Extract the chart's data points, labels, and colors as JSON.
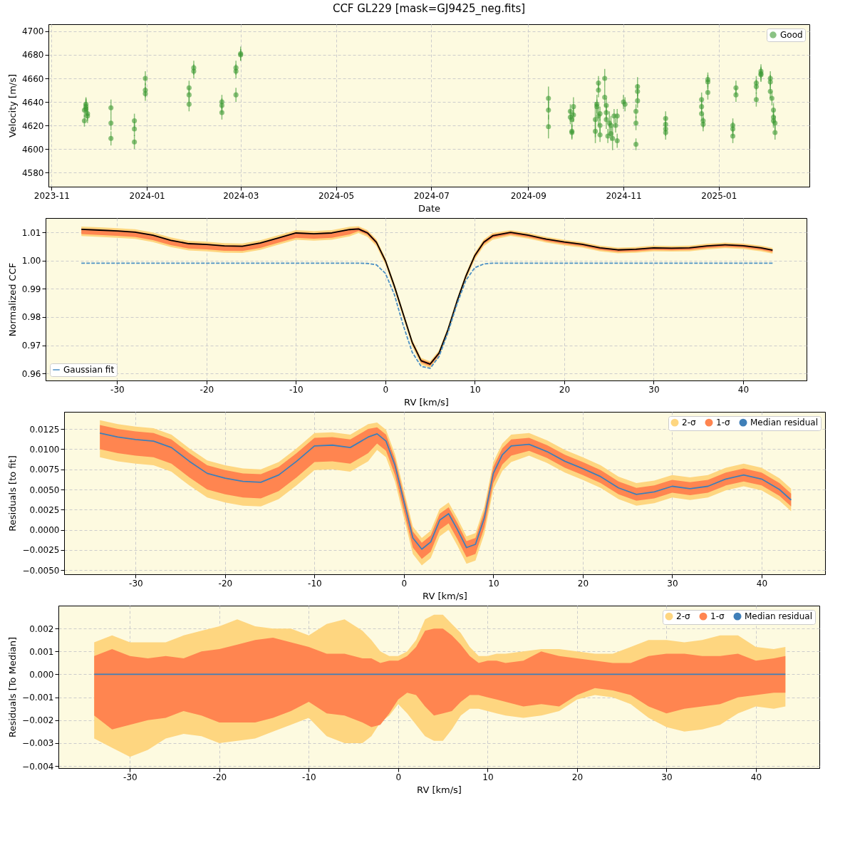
{
  "chart_data": [
    {
      "type": "scatter",
      "title": "CCF GL229 [mask=GJ9425_neg.fits]",
      "xlabel": "Date",
      "ylabel": "Velocity [m/s]",
      "xlim": [
        "2023-10-30",
        "2025-02-28"
      ],
      "xticks": [
        "2023-11",
        "2024-01",
        "2024-03",
        "2024-05",
        "2024-07",
        "2024-09",
        "2024-11",
        "2025-01"
      ],
      "ylim": [
        4568,
        4706
      ],
      "yticks": [
        4580,
        4600,
        4620,
        4640,
        4660,
        4680,
        4700
      ],
      "grid": true,
      "legend": "top right",
      "marker": "circle",
      "series": [
        {
          "name": "Good",
          "color": "#3c9a32",
          "x": [
            "2023-11-22",
            "2023-11-22",
            "2023-11-23",
            "2023-11-23",
            "2023-11-24",
            "2023-11-24",
            "2023-11-23",
            "2023-12-09",
            "2023-12-09",
            "2023-12-09",
            "2023-12-24",
            "2023-12-24",
            "2023-12-24",
            "2023-12-31",
            "2023-12-31",
            "2023-12-31",
            "2024-01-28",
            "2024-01-28",
            "2024-01-28",
            "2024-01-31",
            "2024-01-31",
            "2024-02-18",
            "2024-02-18",
            "2024-02-18",
            "2024-02-27",
            "2024-02-27",
            "2024-02-27",
            "2024-03-01",
            "2024-03-01",
            "2024-09-14",
            "2024-09-14",
            "2024-09-14",
            "2024-09-28",
            "2024-09-28",
            "2024-09-29",
            "2024-09-29",
            "2024-09-29",
            "2024-09-30",
            "2024-09-30",
            "2024-10-14",
            "2024-10-14",
            "2024-10-15",
            "2024-10-15",
            "2024-10-16",
            "2024-10-16",
            "2024-10-16",
            "2024-10-17",
            "2024-10-17",
            "2024-10-17",
            "2024-10-20",
            "2024-10-20",
            "2024-10-21",
            "2024-10-21",
            "2024-10-21",
            "2024-10-22",
            "2024-10-23",
            "2024-10-24",
            "2024-10-24",
            "2024-10-25",
            "2024-10-26",
            "2024-10-27",
            "2024-10-28",
            "2024-10-28",
            "2024-11-01",
            "2024-11-02",
            "2024-11-09",
            "2024-11-09",
            "2024-11-09",
            "2024-11-10",
            "2024-11-10",
            "2024-11-10",
            "2024-11-28",
            "2024-11-28",
            "2024-11-28",
            "2024-11-28",
            "2024-12-21",
            "2024-12-21",
            "2024-12-21",
            "2024-12-22",
            "2024-12-22",
            "2024-12-25",
            "2024-12-25",
            "2024-12-25",
            "2025-01-10",
            "2025-01-10",
            "2025-01-10",
            "2025-01-12",
            "2025-01-12",
            "2025-01-25",
            "2025-01-25",
            "2025-01-25",
            "2025-01-28",
            "2025-01-28",
            "2025-01-28",
            "2025-02-03",
            "2025-02-03",
            "2025-02-03",
            "2025-02-04",
            "2025-02-05",
            "2025-02-05",
            "2025-02-05",
            "2025-02-06",
            "2025-02-06"
          ],
          "values": [
            4624,
            4633,
            4636,
            4638,
            4630,
            4628,
            4634,
            4635,
            4622,
            4609,
            4624,
            4617,
            4606,
            4660,
            4650,
            4647,
            4652,
            4646,
            4638,
            4669,
            4666,
            4640,
            4637,
            4631,
            4669,
            4666,
            4646,
            4681,
            4680,
            4643,
            4633,
            4619,
            4632,
            4627,
            4625,
            4615,
            4614,
            4636,
            4629,
            4615,
            4625,
            4638,
            4636,
            4628,
            4656,
            4650,
            4630,
            4620,
            4612,
            4660,
            4644,
            4637,
            4631,
            4625,
            4611,
            4622,
            4620,
            4613,
            4609,
            4628,
            4620,
            4628,
            4607,
            4640,
            4638,
            4632,
            4622,
            4604,
            4653,
            4649,
            4641,
            4626,
            4621,
            4617,
            4614,
            4642,
            4636,
            4630,
            4624,
            4621,
            4659,
            4657,
            4648,
            4620,
            4617,
            4611,
            4652,
            4646,
            4656,
            4653,
            4642,
            4666,
            4664,
            4663,
            4660,
            4657,
            4649,
            4643,
            4633,
            4627,
            4624,
            4622,
            4614
          ],
          "errors": [
            5,
            6,
            7,
            6,
            6,
            6,
            8,
            7,
            6,
            6,
            6,
            6,
            6,
            6,
            6,
            6,
            6,
            6,
            6,
            6,
            6,
            6,
            6,
            6,
            6,
            6,
            6,
            6,
            5,
            10,
            8,
            10,
            6,
            6,
            6,
            6,
            6,
            8,
            6,
            10,
            15,
            8,
            6,
            8,
            6,
            6,
            6,
            6,
            6,
            8,
            8,
            6,
            6,
            8,
            6,
            10,
            8,
            6,
            10,
            6,
            6,
            6,
            6,
            6,
            6,
            6,
            6,
            5,
            8,
            6,
            6,
            6,
            6,
            6,
            6,
            6,
            6,
            6,
            6,
            6,
            6,
            6,
            6,
            6,
            6,
            6,
            6,
            6,
            6,
            6,
            6,
            6,
            6,
            6,
            6,
            6,
            6,
            6,
            6,
            6,
            6,
            6,
            6
          ]
        }
      ]
    },
    {
      "type": "line",
      "xlabel": "RV [km/s]",
      "ylabel": "Normalized CCF",
      "xlim": [
        -38,
        47.1
      ],
      "xticks": [
        -30,
        -20,
        -10,
        0,
        10,
        20,
        30,
        40
      ],
      "ylim": [
        0.9575,
        1.0151
      ],
      "yticks": [
        0.96,
        0.97,
        0.98,
        0.99,
        {
          "value": 1,
          "label": "1.00"
        },
        1.01
      ],
      "grid": true,
      "legend": "bottom left",
      "x": [
        -34,
        -32,
        -30,
        -28,
        -26,
        -24,
        -22,
        -20,
        -18,
        -16,
        -14,
        -12,
        -10,
        -8,
        -6,
        -4,
        -3,
        -2,
        -1,
        0,
        1,
        2,
        3,
        4,
        5,
        6,
        7,
        8,
        9,
        10,
        11,
        12,
        14,
        16,
        18,
        20,
        22,
        24,
        26,
        28,
        30,
        32,
        34,
        36,
        38,
        40,
        42,
        43.3
      ],
      "series": [
        {
          "type": "line",
          "color": "#fed680",
          "values": [
            null,
            null,
            null,
            null,
            null,
            null,
            null,
            null,
            null,
            null,
            null,
            null,
            null,
            null,
            null,
            null,
            null,
            null,
            null,
            null,
            null,
            null,
            null,
            null,
            null,
            null,
            null,
            null,
            null,
            null,
            null,
            null,
            null,
            null,
            null,
            null,
            null,
            null,
            null,
            null,
            null,
            null,
            null,
            null,
            null,
            null,
            null,
            null
          ],
          "lower": [
            1.0087,
            1.0084,
            1.0081,
            1.0077,
            1.0066,
            1.0048,
            1.0036,
            1.0033,
            1.0028,
            1.0027,
            1.0038,
            1.0056,
            1.0074,
            1.0071,
            1.0074,
            1.0086,
            1.0098,
            1.0084,
            1.0051,
            0.9986,
            0.9896,
            0.9796,
            0.9696,
            0.9631,
            0.9619,
            0.9658,
            0.9741,
            0.9841,
            0.9931,
            1.0004,
            1.0051,
            1.0074,
            1.0088,
            1.0078,
            1.0064,
            1.0054,
            1.0046,
            1.0033,
            1.0026,
            1.0028,
            1.0033,
            1.0032,
            1.0033,
            1.004,
            1.0044,
            1.0041,
            1.0033,
            1.0025
          ],
          "upper": [
            1.0121,
            1.0118,
            1.0115,
            1.0111,
            1.01,
            1.0082,
            1.007,
            1.0067,
            1.0062,
            1.0061,
            1.0072,
            1.009,
            1.0108,
            1.0105,
            1.0108,
            1.012,
            1.0122,
            1.0108,
            1.0075,
            1.001,
            0.992,
            0.982,
            0.972,
            0.9655,
            0.9643,
            0.9682,
            0.9765,
            0.9865,
            0.9955,
            1.0028,
            1.0075,
            1.0098,
            1.0108,
            1.0098,
            1.0084,
            1.0074,
            1.0066,
            1.0053,
            1.0046,
            1.0048,
            1.0053,
            1.0052,
            1.0053,
            1.006,
            1.0064,
            1.0061,
            1.0053,
            1.0045
          ]
        },
        {
          "type": "line",
          "color": "#ff8550",
          "values": [
            null,
            null,
            null,
            null,
            null,
            null,
            null,
            null,
            null,
            null,
            null,
            null,
            null,
            null,
            null,
            null,
            null,
            null,
            null,
            null,
            null,
            null,
            null,
            null,
            null,
            null,
            null,
            null,
            null,
            null,
            null,
            null,
            null,
            null,
            null,
            null,
            null,
            null,
            null,
            null,
            null,
            null,
            null,
            null,
            null,
            null,
            null,
            null
          ],
          "lower": [
            1.0094,
            1.0091,
            1.0088,
            1.0084,
            1.0073,
            1.0055,
            1.0043,
            1.004,
            1.0035,
            1.0034,
            1.0045,
            1.0063,
            1.0081,
            1.0078,
            1.0081,
            1.0093,
            1.0105,
            1.0091,
            1.0058,
            0.9993,
            0.9903,
            0.9803,
            0.9703,
            0.9638,
            0.9626,
            0.9665,
            0.9748,
            0.9848,
            0.9938,
            1.0011,
            1.0058,
            1.0081,
            1.0093,
            1.0083,
            1.0069,
            1.0059,
            1.0051,
            1.0038,
            1.0031,
            1.0033,
            1.0038,
            1.0037,
            1.0038,
            1.0045,
            1.0049,
            1.0046,
            1.0038,
            1.003
          ],
          "upper": [
            1.0114,
            1.0111,
            1.0108,
            1.0104,
            1.0093,
            1.0075,
            1.0063,
            1.006,
            1.0055,
            1.0054,
            1.0065,
            1.0083,
            1.0101,
            1.0098,
            1.0101,
            1.0113,
            1.0117,
            1.0103,
            1.007,
            1.0005,
            0.9915,
            0.9815,
            0.9715,
            0.965,
            0.9638,
            0.9677,
            0.976,
            0.986,
            0.995,
            1.0023,
            1.007,
            1.0093,
            1.0103,
            1.0093,
            1.0079,
            1.0069,
            1.0061,
            1.0048,
            1.0041,
            1.0043,
            1.0048,
            1.0047,
            1.0048,
            1.0055,
            1.0059,
            1.0056,
            1.0048,
            1.004
          ]
        },
        {
          "type": "line",
          "color": "#000000",
          "values": [
            1.0111,
            1.0108,
            1.0105,
            1.0101,
            1.009,
            1.0072,
            1.006,
            1.0057,
            1.0052,
            1.0051,
            1.0062,
            1.008,
            1.0098,
            1.0095,
            1.0098,
            1.011,
            1.0112,
            1.0098,
            1.0065,
            1.0,
            0.991,
            0.981,
            0.971,
            0.9645,
            0.9633,
            0.9672,
            0.9755,
            0.9855,
            0.9945,
            1.0018,
            1.0065,
            1.0088,
            1.01,
            1.009,
            1.0076,
            1.0066,
            1.0058,
            1.0045,
            1.0038,
            1.004,
            1.0045,
            1.0044,
            1.0045,
            1.0052,
            1.0056,
            1.0053,
            1.0045,
            1.0037
          ]
        },
        {
          "name": "Gaussian fit",
          "type": "line",
          "line_style": "dashed",
          "color": "#4a8fc4",
          "values": [
            0.9991,
            0.9991,
            0.9991,
            0.9991,
            0.9991,
            0.9991,
            0.9991,
            0.9991,
            0.9991,
            0.9991,
            0.9991,
            0.9991,
            0.9991,
            0.9991,
            0.9991,
            0.9991,
            0.9991,
            0.999,
            0.9985,
            0.9955,
            0.988,
            0.977,
            0.9675,
            0.9625,
            0.9618,
            0.966,
            0.9745,
            0.9845,
            0.993,
            0.9975,
            0.9988,
            0.9991,
            0.9991,
            0.9991,
            0.9991,
            0.9991,
            0.9991,
            0.9991,
            0.9991,
            0.9991,
            0.9991,
            0.9991,
            0.9991,
            0.9991,
            0.9991,
            0.9991,
            0.9991,
            0.9991
          ]
        }
      ]
    },
    {
      "type": "line",
      "xlabel": "RV [km/s]",
      "ylabel": "Residuals [to fit]",
      "xlim": [
        -38,
        47.1
      ],
      "xticks": [
        -30,
        -20,
        -10,
        0,
        10,
        20,
        30,
        40
      ],
      "ylim": [
        -0.00551,
        0.01463
      ],
      "yticks": [
        {
          "value": -0.005,
          "label": "−0.0050"
        },
        {
          "value": -0.0025,
          "label": "−0.0025"
        },
        {
          "value": 0,
          "label": "0.0000"
        },
        {
          "value": 0.0025,
          "label": "0.0025"
        },
        {
          "value": 0.005,
          "label": "0.0050"
        },
        {
          "value": 0.0075,
          "label": "0.0075"
        },
        {
          "value": 0.01,
          "label": "0.0100"
        },
        {
          "value": 0.0125,
          "label": "0.0125"
        }
      ],
      "grid": true,
      "legend": "top right",
      "x": [
        -34,
        -32,
        -30,
        -28,
        -26,
        -24,
        -22,
        -20,
        -18,
        -16,
        -14,
        -12,
        -10,
        -8,
        -6,
        -4,
        -3,
        -2,
        -1,
        0,
        1,
        2,
        3,
        4,
        5,
        6,
        7,
        8,
        9,
        10,
        11,
        12,
        14,
        16,
        18,
        20,
        22,
        24,
        26,
        28,
        30,
        32,
        34,
        36,
        38,
        40,
        42,
        43.3
      ],
      "series": [
        {
          "name": "2-σ",
          "type": "line",
          "color": "#fed680",
          "values": [
            null,
            null,
            null,
            null,
            null,
            null,
            null,
            null,
            null,
            null,
            null,
            null,
            null,
            null,
            null,
            null,
            null,
            null,
            null,
            null,
            null,
            null,
            null,
            null,
            null,
            null,
            null,
            null,
            null,
            null,
            null,
            null,
            null,
            null,
            null,
            null,
            null,
            null,
            null,
            null,
            null,
            null,
            null,
            null,
            null,
            null,
            null,
            null
          ],
          "lower": [
            0.009,
            0.0085,
            0.0082,
            0.008,
            0.0072,
            0.0055,
            0.004,
            0.0034,
            0.003,
            0.0029,
            0.0038,
            0.0055,
            0.0074,
            0.0075,
            0.0072,
            0.0085,
            0.0099,
            0.009,
            0.006,
            0.0015,
            -0.003,
            -0.0044,
            -0.0035,
            -0.0008,
            0.0,
            -0.002,
            -0.0042,
            -0.0038,
            -0.0005,
            0.005,
            0.0073,
            0.0084,
            0.0092,
            0.0083,
            0.0071,
            0.0062,
            0.0052,
            0.0038,
            0.003,
            0.0033,
            0.004,
            0.0037,
            0.004,
            0.0049,
            0.0054,
            0.0049,
            0.0036,
            0.0023
          ],
          "upper": [
            0.0136,
            0.0131,
            0.0128,
            0.0126,
            0.0118,
            0.0101,
            0.0086,
            0.008,
            0.0076,
            0.0075,
            0.0084,
            0.0101,
            0.012,
            0.0121,
            0.0118,
            0.0131,
            0.0133,
            0.0124,
            0.0094,
            0.0049,
            0.0004,
            -0.001,
            -0.0001,
            0.0026,
            0.0034,
            0.0014,
            -0.0008,
            -0.0004,
            0.0029,
            0.0084,
            0.0107,
            0.0118,
            0.012,
            0.0111,
            0.0099,
            0.009,
            0.008,
            0.0066,
            0.0058,
            0.0061,
            0.0068,
            0.0065,
            0.0068,
            0.0077,
            0.0082,
            0.0077,
            0.0064,
            0.0051
          ]
        },
        {
          "name": "1-σ",
          "type": "line",
          "color": "#ff8550",
          "values": [
            null,
            null,
            null,
            null,
            null,
            null,
            null,
            null,
            null,
            null,
            null,
            null,
            null,
            null,
            null,
            null,
            null,
            null,
            null,
            null,
            null,
            null,
            null,
            null,
            null,
            null,
            null,
            null,
            null,
            null,
            null,
            null,
            null,
            null,
            null,
            null,
            null,
            null,
            null,
            null,
            null,
            null,
            null,
            null,
            null,
            null,
            null,
            null
          ],
          "lower": [
            0.01,
            0.0095,
            0.0092,
            0.009,
            0.0082,
            0.0065,
            0.005,
            0.0044,
            0.004,
            0.0039,
            0.0048,
            0.0065,
            0.0084,
            0.0085,
            0.0082,
            0.0095,
            0.0107,
            0.0098,
            0.0068,
            0.0023,
            -0.0022,
            -0.0036,
            -0.0027,
            0.0,
            0.0008,
            -0.0012,
            -0.0034,
            -0.003,
            0.0003,
            0.0058,
            0.0081,
            0.0092,
            0.0098,
            0.0089,
            0.0077,
            0.0068,
            0.0058,
            0.0044,
            0.0036,
            0.0039,
            0.0046,
            0.0043,
            0.0046,
            0.0055,
            0.006,
            0.0055,
            0.0042,
            0.0029
          ],
          "upper": [
            0.013,
            0.0125,
            0.0122,
            0.012,
            0.0112,
            0.0095,
            0.008,
            0.0074,
            0.007,
            0.0069,
            0.0078,
            0.0095,
            0.0114,
            0.0115,
            0.0112,
            0.0125,
            0.0127,
            0.0118,
            0.0088,
            0.0043,
            -0.0002,
            -0.0016,
            -0.0007,
            0.002,
            0.0028,
            0.0008,
            -0.0014,
            -0.001,
            0.0023,
            0.0078,
            0.0101,
            0.0112,
            0.0114,
            0.0105,
            0.0093,
            0.0084,
            0.0074,
            0.006,
            0.0052,
            0.0055,
            0.0062,
            0.0059,
            0.0062,
            0.0071,
            0.0076,
            0.0071,
            0.0058,
            0.0045
          ]
        },
        {
          "name": "Median residual",
          "type": "line",
          "color": "#3f7fb8",
          "values": [
            0.012,
            0.0115,
            0.0112,
            0.011,
            0.0102,
            0.0085,
            0.007,
            0.0064,
            0.006,
            0.0059,
            0.0068,
            0.0085,
            0.0104,
            0.0105,
            0.0102,
            0.0115,
            0.0119,
            0.011,
            0.008,
            0.0035,
            -0.001,
            -0.0024,
            -0.0015,
            0.0012,
            0.002,
            0.0,
            -0.0022,
            -0.0018,
            0.0015,
            0.007,
            0.0093,
            0.0104,
            0.0106,
            0.0097,
            0.0085,
            0.0076,
            0.0066,
            0.0052,
            0.0044,
            0.0047,
            0.0054,
            0.0051,
            0.0054,
            0.0063,
            0.0068,
            0.0063,
            0.005,
            0.0037
          ]
        }
      ]
    },
    {
      "type": "line",
      "xlabel": "RV [km/s]",
      "ylabel": "Residuals [To Median]",
      "xlim": [
        -38,
        47.1
      ],
      "xticks": [
        -30,
        -20,
        -10,
        0,
        10,
        20,
        30,
        40
      ],
      "ylim": [
        -0.00409,
        0.003
      ],
      "yticks": [
        {
          "value": -0.004,
          "label": "−0.004"
        },
        {
          "value": -0.003,
          "label": "−0.003"
        },
        {
          "value": -0.002,
          "label": "−0.002"
        },
        {
          "value": -0.001,
          "label": "−0.001"
        },
        {
          "value": 0,
          "label": "0.000"
        },
        {
          "value": 0.001,
          "label": "0.001"
        },
        {
          "value": 0.002,
          "label": "0.002"
        }
      ],
      "grid": true,
      "legend": "top right",
      "x": [
        -34,
        -32,
        -30,
        -28,
        -26,
        -24,
        -22,
        -20,
        -18,
        -16,
        -14,
        -12,
        -10,
        -8,
        -6,
        -4,
        -3,
        -2,
        -1,
        0,
        1,
        2,
        3,
        4,
        5,
        6,
        7,
        8,
        9,
        10,
        11,
        12,
        14,
        16,
        18,
        20,
        22,
        24,
        26,
        28,
        30,
        32,
        34,
        36,
        38,
        40,
        42,
        43.3
      ],
      "series": [
        {
          "name": "2-σ",
          "type": "line",
          "color": "#fed680",
          "values": [
            null,
            null,
            null,
            null,
            null,
            null,
            null,
            null,
            null,
            null,
            null,
            null,
            null,
            null,
            null,
            null,
            null,
            null,
            null,
            null,
            null,
            null,
            null,
            null,
            null,
            null,
            null,
            null,
            null,
            null,
            null,
            null,
            null,
            null,
            null,
            null,
            null,
            null,
            null,
            null,
            null,
            null,
            null,
            null,
            null,
            null,
            null,
            null
          ],
          "lower": [
            -0.0028,
            -0.0032,
            -0.0036,
            -0.0033,
            -0.0028,
            -0.0026,
            -0.0027,
            -0.003,
            -0.0029,
            -0.0028,
            -0.0025,
            -0.0022,
            -0.0019,
            -0.0027,
            -0.003,
            -0.003,
            -0.0027,
            -0.0021,
            -0.0018,
            -0.0013,
            -0.0017,
            -0.0022,
            -0.0027,
            -0.0029,
            -0.0029,
            -0.0024,
            -0.0018,
            -0.0015,
            -0.0015,
            -0.0016,
            -0.0017,
            -0.0018,
            -0.0019,
            -0.0018,
            -0.0016,
            -0.0011,
            -0.0009,
            -0.001,
            -0.0013,
            -0.0019,
            -0.0023,
            -0.0025,
            -0.0024,
            -0.0022,
            -0.0017,
            -0.0014,
            -0.0015,
            -0.0014
          ],
          "upper": [
            0.0014,
            0.0017,
            0.0014,
            0.0014,
            0.0014,
            0.0017,
            0.0019,
            0.0021,
            0.0024,
            0.0021,
            0.002,
            0.002,
            0.0017,
            0.0022,
            0.0024,
            0.0019,
            0.0015,
            0.001,
            0.0008,
            0.0008,
            0.001,
            0.0015,
            0.0024,
            0.0026,
            0.0026,
            0.0022,
            0.0018,
            0.0012,
            0.0008,
            0.0008,
            0.0009,
            0.0009,
            0.001,
            0.0011,
            0.0011,
            0.001,
            0.0009,
            0.0009,
            0.0012,
            0.0015,
            0.0015,
            0.0014,
            0.0015,
            0.0017,
            0.0017,
            0.0012,
            0.0011,
            0.0012
          ]
        },
        {
          "name": "1-σ",
          "type": "line",
          "color": "#ff8550",
          "values": [
            null,
            null,
            null,
            null,
            null,
            null,
            null,
            null,
            null,
            null,
            null,
            null,
            null,
            null,
            null,
            null,
            null,
            null,
            null,
            null,
            null,
            null,
            null,
            null,
            null,
            null,
            null,
            null,
            null,
            null,
            null,
            null,
            null,
            null,
            null,
            null,
            null,
            null,
            null,
            null,
            null,
            null,
            null,
            null,
            null,
            null,
            null,
            null
          ],
          "lower": [
            -0.0018,
            -0.0024,
            -0.0022,
            -0.002,
            -0.0019,
            -0.0016,
            -0.0018,
            -0.0021,
            -0.0021,
            -0.0021,
            -0.0019,
            -0.0016,
            -0.0012,
            -0.0017,
            -0.0018,
            -0.0021,
            -0.0023,
            -0.0022,
            -0.0017,
            -0.0011,
            -0.0008,
            -0.0009,
            -0.0014,
            -0.0018,
            -0.0017,
            -0.0016,
            -0.0012,
            -0.0009,
            -0.0009,
            -0.001,
            -0.0011,
            -0.0012,
            -0.0014,
            -0.0013,
            -0.0014,
            -0.0009,
            -0.0006,
            -0.0007,
            -0.0009,
            -0.0014,
            -0.0017,
            -0.0015,
            -0.0014,
            -0.0013,
            -0.001,
            -0.0009,
            -0.0008,
            -0.0008
          ],
          "upper": [
            0.0008,
            0.0011,
            0.0008,
            0.0007,
            0.0008,
            0.0007,
            0.001,
            0.0011,
            0.0013,
            0.0015,
            0.0016,
            0.0014,
            0.0012,
            0.0009,
            0.0009,
            0.0007,
            0.0007,
            0.0005,
            0.0006,
            0.0006,
            0.0008,
            0.0012,
            0.0019,
            0.002,
            0.002,
            0.0017,
            0.0013,
            0.0008,
            0.0005,
            0.0006,
            0.0006,
            0.0005,
            0.0006,
            0.001,
            0.0008,
            0.0007,
            0.0006,
            0.0005,
            0.0005,
            0.0008,
            0.0009,
            0.0009,
            0.0008,
            0.0008,
            0.0009,
            0.0006,
            0.0007,
            0.0008
          ]
        },
        {
          "name": "Median residual",
          "type": "line",
          "color": "#3f7fb8",
          "values": [
            0,
            0,
            0,
            0,
            0,
            0,
            0,
            0,
            0,
            0,
            0,
            0,
            0,
            0,
            0,
            0,
            0,
            0,
            0,
            0,
            0,
            0,
            0,
            0,
            0,
            0,
            0,
            0,
            0,
            0,
            0,
            0,
            0,
            0,
            0,
            0,
            0,
            0,
            0,
            0,
            0,
            0,
            0,
            0,
            0,
            0,
            0,
            0
          ]
        }
      ]
    }
  ]
}
